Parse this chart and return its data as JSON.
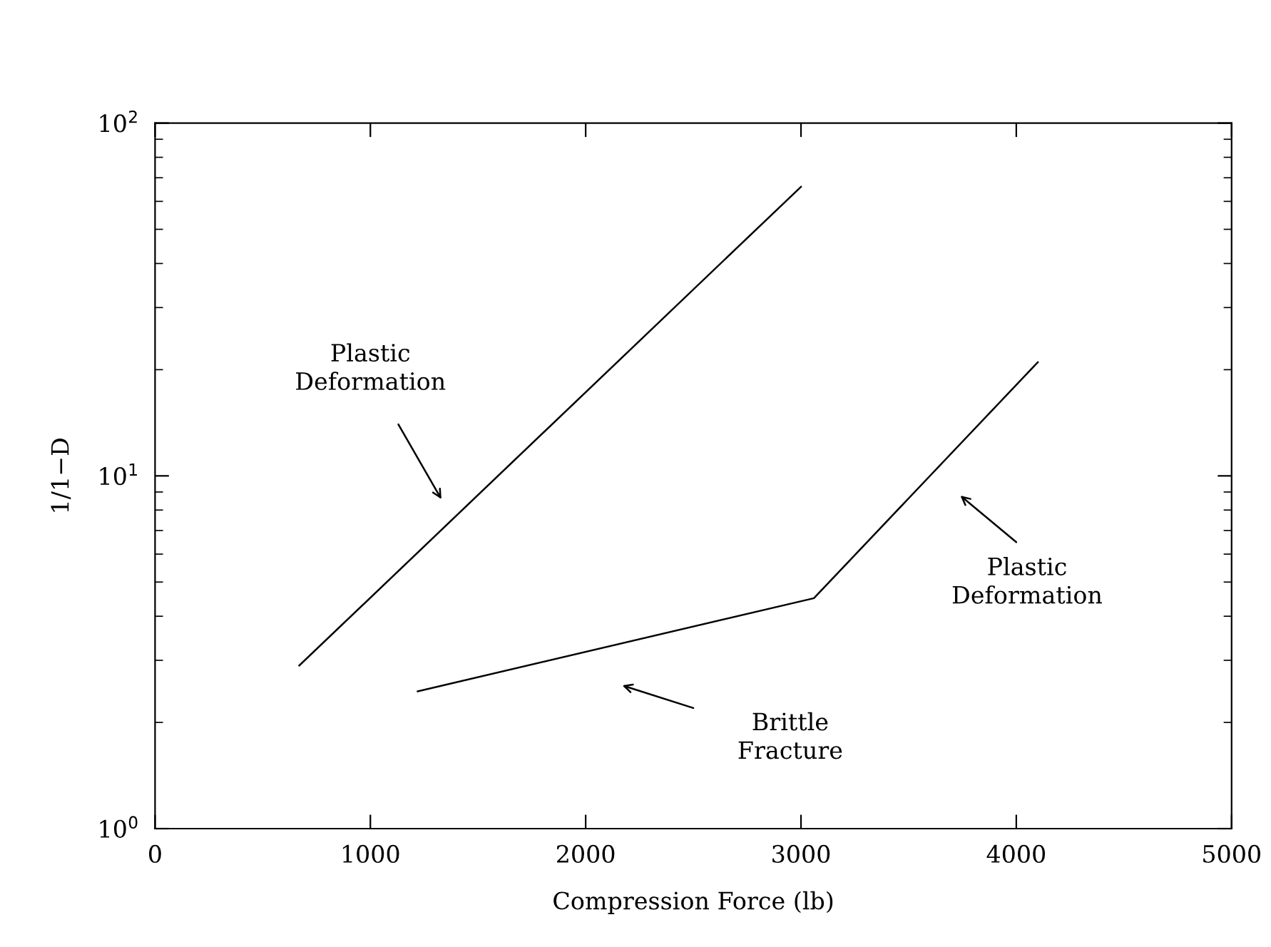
{
  "chart_data": {
    "type": "line",
    "xlabel": "Compression Force (lb)",
    "ylabel": "1/1−D",
    "log": "y",
    "xlim": [
      0,
      5000
    ],
    "xticks": [
      0,
      1000,
      2000,
      3000,
      4000,
      5000
    ],
    "ylim": [
      1,
      100
    ],
    "yticks": [
      {
        "value": 1,
        "label": "10$^{0}$"
      },
      {
        "value": 10,
        "label": "10$^{1}$"
      },
      {
        "value": 100,
        "label": "10$^{2}$"
      }
    ],
    "grid": false,
    "marker": "none",
    "line_style": "solid",
    "series": [
      {
        "color": "#000000",
        "x": [
          670,
          3000
        ],
        "values": [
          2.9,
          66
        ]
      },
      {
        "color": "#000000",
        "x": [
          1220,
          3060,
          4100
        ],
        "values": [
          2.45,
          4.5,
          21
        ]
      }
    ],
    "annotations": [
      "Plastic\nDeformation",
      "Brittle\nFracture",
      "Plastic\nDeformation"
    ]
  }
}
